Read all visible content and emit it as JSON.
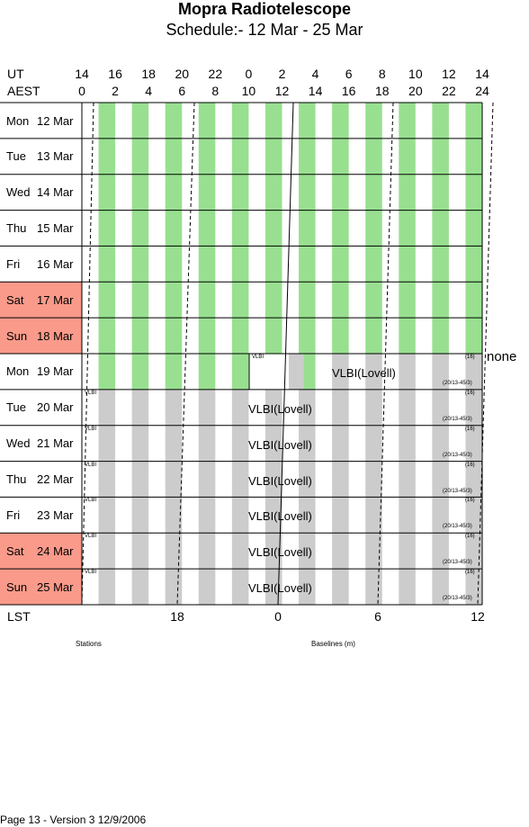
{
  "title": "Mopra Radiotelescope",
  "subtitle": "Schedule:- 12 Mar - 25 Mar",
  "axes": {
    "ut_label": "UT",
    "aest_label": "AEST",
    "ut_ticks": [
      "14",
      "16",
      "18",
      "20",
      "22",
      "0",
      "2",
      "4",
      "6",
      "8",
      "10",
      "12",
      "14"
    ],
    "aest_ticks": [
      "0",
      "2",
      "4",
      "6",
      "8",
      "10",
      "12",
      "14",
      "16",
      "18",
      "20",
      "22",
      "24"
    ],
    "lst_label": "LST",
    "lst_ticks": [
      "18",
      "0",
      "6",
      "12"
    ]
  },
  "days": [
    {
      "name": "Mon",
      "date": "12 Mar",
      "weekend": false,
      "type": "green"
    },
    {
      "name": "Tue",
      "date": "13 Mar",
      "weekend": false,
      "type": "green"
    },
    {
      "name": "Wed",
      "date": "14 Mar",
      "weekend": false,
      "type": "green"
    },
    {
      "name": "Thu",
      "date": "15 Mar",
      "weekend": false,
      "type": "green"
    },
    {
      "name": "Fri",
      "date": "16 Mar",
      "weekend": false,
      "type": "green"
    },
    {
      "name": "Sat",
      "date": "17 Mar",
      "weekend": true,
      "type": "green"
    },
    {
      "name": "Sun",
      "date": "18 Mar",
      "weekend": true,
      "type": "green"
    },
    {
      "name": "Mon",
      "date": "19 Mar",
      "weekend": false,
      "type": "split"
    },
    {
      "name": "Tue",
      "date": "20 Mar",
      "weekend": false,
      "type": "gray"
    },
    {
      "name": "Wed",
      "date": "21 Mar",
      "weekend": false,
      "type": "gray"
    },
    {
      "name": "Thu",
      "date": "22 Mar",
      "weekend": false,
      "type": "gray"
    },
    {
      "name": "Fri",
      "date": "23 Mar",
      "weekend": false,
      "type": "gray"
    },
    {
      "name": "Sat",
      "date": "24 Mar",
      "weekend": true,
      "type": "gray"
    },
    {
      "name": "Sun",
      "date": "25 Mar",
      "weekend": true,
      "type": "gray"
    }
  ],
  "project_small": "VLBI",
  "project_main": "VLBI(Lovell)",
  "note_top": "(16)",
  "note_bottom": "(20/13-45/3)",
  "side_label": "none",
  "footer_stations": "Stations",
  "footer_baselines": "Baselines (m)",
  "page_footer": "Page 13 - Version 3  12/9/2006",
  "colors": {
    "green": "#98e090",
    "gray": "#cccccc",
    "weekend": "#fa9a8a"
  }
}
